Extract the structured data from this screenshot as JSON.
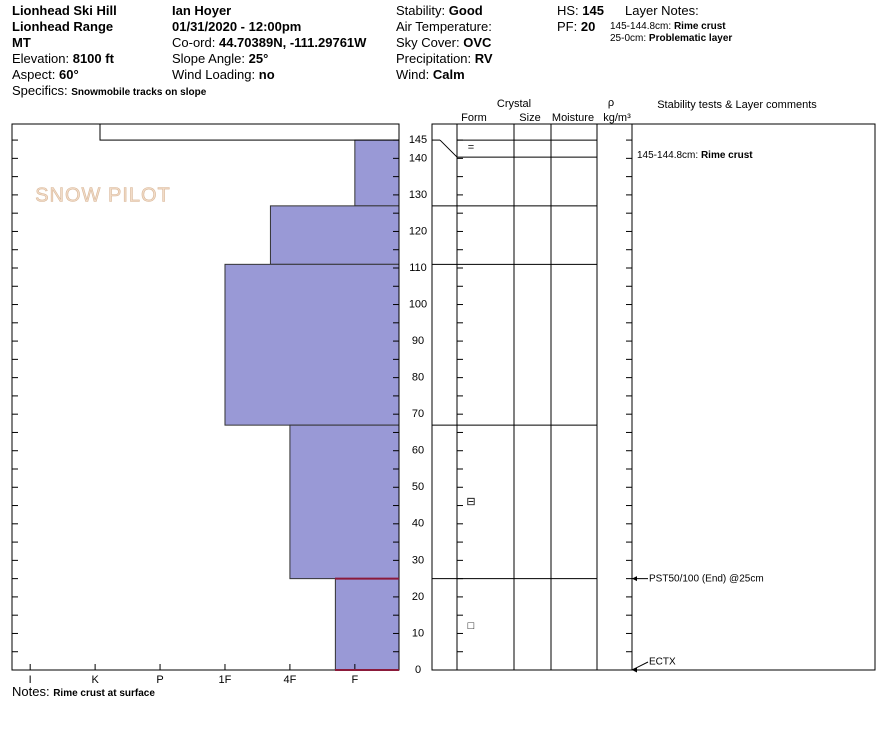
{
  "header": {
    "columns": [
      [
        {
          "value": "Lionhead Ski Hill"
        },
        {
          "value": "Lionhead Range"
        },
        {
          "value": "MT"
        },
        {
          "label": "Elevation:",
          "value": "8100 ft"
        },
        {
          "label": "Aspect:",
          "value": "60°"
        }
      ],
      [
        {
          "value": "Ian Hoyer"
        },
        {
          "value": "01/31/2020 - 12:00pm"
        },
        {
          "label": "Co-ord:",
          "value": "44.70389N, -111.29761W"
        },
        {
          "label": "Slope Angle:",
          "value": "25°"
        },
        {
          "label": "Wind Loading:",
          "value": "no"
        }
      ],
      [
        {
          "label": "Stability:",
          "value": "Good"
        },
        {
          "label": "Air Temperature:"
        },
        {
          "label": "Sky Cover:",
          "value": "OVC"
        },
        {
          "label": "Precipitation:",
          "value": "RV"
        },
        {
          "label": "Wind:",
          "value": "Calm"
        }
      ],
      [
        {
          "label": "HS:",
          "value": "145"
        },
        {
          "label": "PF:",
          "value": "20"
        }
      ]
    ],
    "specifics": {
      "label": "Specifics:",
      "value": "Snowmobile tracks on slope"
    },
    "layer_notes": {
      "title": "Layer Notes:",
      "items": [
        {
          "label": "145-144.8cm:",
          "value": "Rime crust"
        },
        {
          "label": "25-0cm:",
          "value": "Problematic layer"
        }
      ]
    },
    "notes": {
      "label": "Notes:",
      "value": "Rime crust at surface"
    },
    "logo": "SNOW PILOT"
  },
  "chart_data": {
    "type": "snow-profile",
    "columns": {
      "crystal": "Crystal",
      "form": "Form",
      "size": "Size",
      "moisture": "Moisture",
      "rho": "ρ",
      "rho_unit": "kg/m³",
      "comments": "Stability tests & Layer comments"
    },
    "ylim": [
      0,
      149.4
    ],
    "yticks": [
      0,
      10,
      20,
      30,
      40,
      50,
      60,
      70,
      80,
      90,
      100,
      110,
      120,
      130,
      140,
      145
    ],
    "minor_yticks": [
      5,
      15,
      25,
      35,
      45,
      55,
      65,
      75,
      85,
      95,
      105,
      115,
      125,
      135
    ],
    "xlim": [
      6.28,
      0.32
    ],
    "xticks": [
      {
        "value": 6,
        "label": "I"
      },
      {
        "value": 5,
        "label": "K"
      },
      {
        "value": 4,
        "label": "P"
      },
      {
        "value": 3,
        "label": "1F"
      },
      {
        "value": 2,
        "label": "4F"
      },
      {
        "value": 1,
        "label": "F"
      }
    ],
    "color": "#9999d6",
    "layers": [
      {
        "top": 145,
        "bottom": 127,
        "hardness": 1
      },
      {
        "top": 127,
        "bottom": 111,
        "hardness": 2.3
      },
      {
        "top": 111,
        "bottom": 67,
        "hardness": 3
      },
      {
        "top": 67,
        "bottom": 25,
        "hardness": 2
      },
      {
        "top": 25,
        "bottom": 0,
        "hardness": 1.3
      }
    ],
    "grains": [
      {
        "height": 143,
        "symbol": "="
      },
      {
        "height": 46,
        "symbol": "⊟"
      },
      {
        "height": 12,
        "symbol": "□"
      }
    ],
    "layer_comments": [
      {
        "label": "145-144.8cm:",
        "value": "Rime crust"
      }
    ],
    "stability_tests": [
      {
        "height": 25,
        "text": "PST50/100 (End) @25cm"
      },
      {
        "height": 0,
        "text": "ECTX"
      }
    ],
    "test_color": "#8b1a3a"
  }
}
